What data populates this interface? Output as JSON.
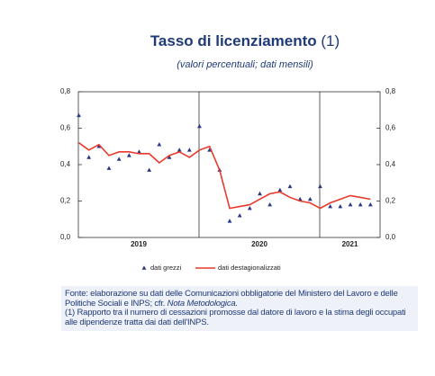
{
  "chart_data": {
    "type": "line",
    "title": "Tasso di licenziamento",
    "title_note": "(1)",
    "subtitle": "(valori percentuali; dati mensili)",
    "year_labels": [
      "2019",
      "2020",
      "2021"
    ],
    "categories": [
      null,
      null,
      null,
      null,
      null,
      null,
      null,
      null,
      null,
      null,
      null,
      null,
      null,
      null,
      null,
      null,
      null,
      null,
      null,
      null,
      null,
      null,
      null,
      null,
      null,
      null,
      null,
      null,
      null,
      null
    ],
    "series": [
      {
        "name": "dati grezzi",
        "color": "#2b3585",
        "marker": "triangle",
        "values": [
          0.67,
          0.44,
          0.5,
          0.38,
          0.43,
          0.45,
          0.47,
          0.37,
          0.51,
          0.44,
          0.48,
          0.48,
          0.61,
          0.48,
          0.37,
          0.09,
          0.12,
          0.16,
          0.24,
          0.18,
          0.26,
          0.28,
          0.21,
          0.21,
          0.28,
          0.17,
          0.17,
          0.18,
          0.18,
          0.18
        ]
      },
      {
        "name": "dati destagionalizzati",
        "color": "#e8392b",
        "marker": "line",
        "values": [
          0.52,
          0.48,
          0.51,
          0.45,
          0.47,
          0.47,
          0.46,
          0.46,
          0.41,
          0.45,
          0.47,
          0.44,
          0.48,
          0.5,
          0.37,
          0.16,
          0.17,
          0.18,
          0.21,
          0.24,
          0.25,
          0.22,
          0.2,
          0.19,
          0.16,
          0.19,
          0.21,
          0.23,
          0.22,
          0.21
        ]
      }
    ],
    "ylim": [
      0,
      0.8
    ],
    "yticks": [
      {
        "value": 0,
        "label": "0,0"
      },
      {
        "value": 0.2,
        "label": "0,2"
      },
      {
        "value": 0.4,
        "label": "0,4"
      },
      {
        "value": 0.6,
        "label": "0,6"
      },
      {
        "value": 0.8,
        "label": "0,8"
      }
    ],
    "y2lim": [
      0,
      0.8
    ],
    "y2ticks": [
      {
        "value": 0,
        "label": "0,0"
      },
      {
        "value": 0.2,
        "label": "0,2"
      },
      {
        "value": 0.4,
        "label": "0,4"
      },
      {
        "value": 0.6,
        "label": "0,6"
      },
      {
        "value": 0.8,
        "label": "0,8"
      }
    ],
    "legend": "bottom",
    "source": "Fonte: elaborazione su dati delle Comunicazioni obbligatorie del Ministero del Lavoro e delle Politiche Sociali e INPS; cfr. ",
    "source_link": "Nota Metodologica.",
    "note": "(1) Rapporto tra il numero di cessazioni promosse dal datore di lavoro e la stima degli occupati alle dipendenze tratta dai dati dell'INPS."
  }
}
